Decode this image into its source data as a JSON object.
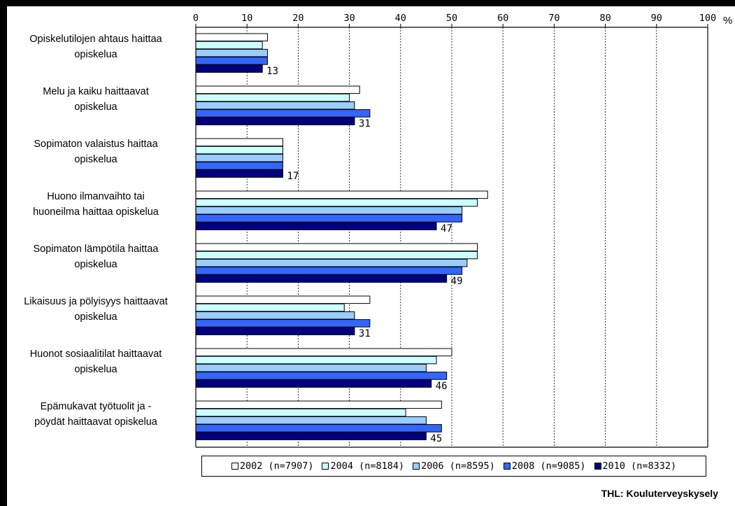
{
  "chart_data": {
    "type": "bar",
    "orientation": "horizontal",
    "categories": [
      "Opiskelutilojen ahtaus haittaa opiskelua",
      "Melu ja kaiku haittaavat opiskelua",
      "Sopimaton valaistus haittaa opiskelua",
      "Huono ilmanvaihto tai huoneilma haittaa opiskelua",
      "Sopimaton lämpötila haittaa opiskelua",
      "Likaisuus ja pölyisyys haittaavat opiskelua",
      "Huonot sosiaalitilat haittaavat opiskelua",
      "Epämukavat työtuolit ja -pöydät haittaavat opiskelua"
    ],
    "category_lines": [
      [
        "Opiskelutilojen ahtaus haittaa",
        "opiskelua"
      ],
      [
        "Melu ja kaiku haittaavat",
        "opiskelua"
      ],
      [
        "Sopimaton valaistus haittaa",
        "opiskelua"
      ],
      [
        "Huono ilmanvaihto tai",
        "huoneilma haittaa opiskelua"
      ],
      [
        "Sopimaton lämpötila haittaa",
        "opiskelua"
      ],
      [
        "Likaisuus ja pölyisyys haittaavat",
        "opiskelua"
      ],
      [
        "Huonot sosiaalitilat haittaavat",
        "opiskelua"
      ],
      [
        "Epämukavat työtuolit ja -",
        "pöydät haittaavat opiskelua"
      ]
    ],
    "series": [
      {
        "name": "2002 (n=7907)",
        "color": "#ffffff",
        "values": [
          14,
          32,
          17,
          57,
          55,
          34,
          50,
          48
        ]
      },
      {
        "name": "2004 (n=8184)",
        "color": "#ccffff",
        "values": [
          13,
          30,
          17,
          55,
          55,
          29,
          47,
          41
        ]
      },
      {
        "name": "2006 (n=8595)",
        "color": "#99ccff",
        "values": [
          14,
          31,
          17,
          52,
          53,
          31,
          45,
          45
        ]
      },
      {
        "name": "2008 (n=9085)",
        "color": "#3366ff",
        "values": [
          14,
          34,
          17,
          52,
          52,
          34,
          49,
          48
        ]
      },
      {
        "name": "2010 (n=8332)",
        "color": "#000080",
        "values": [
          13,
          31,
          17,
          47,
          49,
          31,
          46,
          45
        ]
      }
    ],
    "data_labels": [
      "13",
      "31",
      "17",
      "47",
      "49",
      "31",
      "46",
      "45"
    ],
    "x_ticks": [
      "0",
      "10",
      "20",
      "30",
      "40",
      "50",
      "60",
      "70",
      "80",
      "90",
      "100"
    ],
    "x_unit": "%",
    "xlim": [
      0,
      100
    ],
    "x_axis_position": "top",
    "grid": "vertical dotted",
    "legend_position": "bottom",
    "source": "THL: Kouluterveyskysely"
  }
}
